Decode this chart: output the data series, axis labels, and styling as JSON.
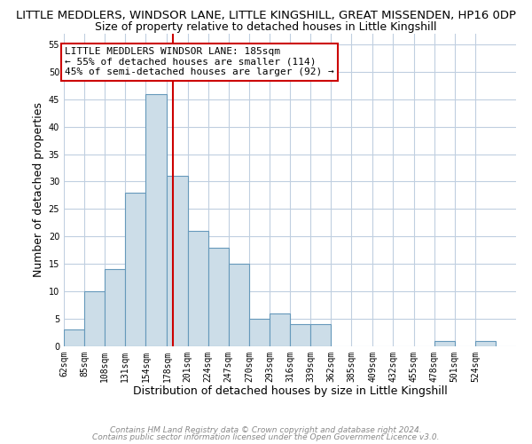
{
  "title": "LITTLE MEDDLERS, WINDSOR LANE, LITTLE KINGSHILL, GREAT MISSENDEN, HP16 0DP",
  "subtitle": "Size of property relative to detached houses in Little Kingshill",
  "xlabel": "Distribution of detached houses by size in Little Kingshill",
  "ylabel": "Number of detached properties",
  "bin_labels": [
    "62sqm",
    "85sqm",
    "108sqm",
    "131sqm",
    "154sqm",
    "178sqm",
    "201sqm",
    "224sqm",
    "247sqm",
    "270sqm",
    "293sqm",
    "316sqm",
    "339sqm",
    "362sqm",
    "385sqm",
    "409sqm",
    "432sqm",
    "455sqm",
    "478sqm",
    "501sqm",
    "524sqm"
  ],
  "bin_edges": [
    62,
    85,
    108,
    131,
    154,
    178,
    201,
    224,
    247,
    270,
    293,
    316,
    339,
    362,
    385,
    409,
    432,
    455,
    478,
    501,
    524,
    547
  ],
  "bar_heights": [
    3,
    10,
    14,
    28,
    46,
    31,
    21,
    18,
    15,
    5,
    6,
    4,
    4,
    0,
    0,
    0,
    0,
    0,
    1,
    0,
    1
  ],
  "bar_color": "#ccdde8",
  "bar_edge_color": "#6699bb",
  "vline_x": 185,
  "vline_color": "#cc0000",
  "annotation_text": "LITTLE MEDDLERS WINDSOR LANE: 185sqm\n← 55% of detached houses are smaller (114)\n45% of semi-detached houses are larger (92) →",
  "annotation_box_color": "#ffffff",
  "annotation_box_edge_color": "#cc0000",
  "ylim": [
    0,
    57
  ],
  "yticks": [
    0,
    5,
    10,
    15,
    20,
    25,
    30,
    35,
    40,
    45,
    50,
    55
  ],
  "footer_line1": "Contains HM Land Registry data © Crown copyright and database right 2024.",
  "footer_line2": "Contains public sector information licensed under the Open Government Licence v3.0.",
  "bg_color": "#ffffff",
  "grid_color": "#c0cfe0",
  "title_fontsize": 9.5,
  "subtitle_fontsize": 9,
  "axis_label_fontsize": 9,
  "tick_fontsize": 7,
  "annotation_fontsize": 8,
  "footer_fontsize": 6.5
}
